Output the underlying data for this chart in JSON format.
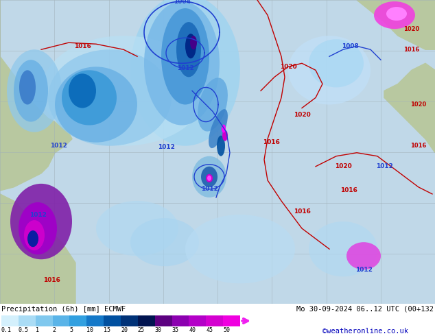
{
  "title_left": "Precipitation (6h) [mm] ECMWF",
  "title_right": "Mo 30-09-2024 06..12 UTC (00+132",
  "watermark": "©weatheronline.co.uk",
  "colorbar_labels": [
    "0.1",
    "0.5",
    "1",
    "2",
    "5",
    "10",
    "15",
    "20",
    "25",
    "30",
    "35",
    "40",
    "45",
    "50"
  ],
  "colorbar_colors": [
    "#d4f0fc",
    "#aadcf5",
    "#80c8ee",
    "#5ab4e8",
    "#32a0e0",
    "#1478c8",
    "#0050a0",
    "#003278",
    "#001450",
    "#5c0080",
    "#8c00b0",
    "#b400c8",
    "#d400d0",
    "#f000e0"
  ],
  "arrow_color": "#f020f0",
  "fig_width": 6.34,
  "fig_height": 4.9,
  "dpi": 100,
  "ocean_color": "#c0d8e8",
  "land_color_green": "#b8c8a0",
  "land_color_beige": "#c8b890",
  "grid_color": "#a0b0b8",
  "map_bg": "#c8d8e0"
}
